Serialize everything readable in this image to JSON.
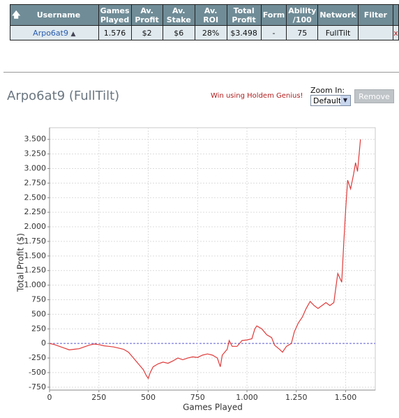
{
  "table": {
    "headers": [
      "Username",
      "Games Played",
      "Av. Profit",
      "Av. Stake",
      "Av. ROI",
      "Total Profit",
      "Form",
      "Ability /100",
      "Network",
      "Filter"
    ],
    "rows": [
      [
        "Arpo6at9",
        "1.576",
        "$2",
        "$6",
        "28%",
        "$3.498",
        "-",
        "75",
        "FullTilt"
      ]
    ],
    "delete": "x"
  },
  "profile": {
    "heading": "Arpo6at9 (FullTilt)",
    "promo": "Win using Holdem Genius!",
    "zoom_label": "Zoom In:",
    "zoom_option": "Default",
    "remove_button": "Remove"
  },
  "chart_data": {
    "type": "line",
    "x_label": "Games Played",
    "y_label": "Total Profit ($)",
    "x": [
      0,
      25,
      50,
      75,
      100,
      125,
      150,
      175,
      200,
      225,
      250,
      275,
      300,
      325,
      350,
      375,
      400,
      425,
      450,
      475,
      490,
      500,
      510,
      525,
      550,
      575,
      600,
      625,
      650,
      675,
      700,
      725,
      750,
      775,
      800,
      825,
      850,
      865,
      875,
      900,
      910,
      925,
      950,
      975,
      1000,
      1025,
      1040,
      1050,
      1075,
      1100,
      1125,
      1140,
      1165,
      1180,
      1200,
      1225,
      1240,
      1260,
      1280,
      1300,
      1320,
      1340,
      1360,
      1380,
      1400,
      1420,
      1440,
      1460,
      1480,
      1490,
      1500,
      1510,
      1525,
      1540,
      1550,
      1560,
      1575
    ],
    "series": [
      {
        "name": "Total Profit",
        "color": "#e03a3a",
        "values": [
          0,
          -20,
          -50,
          -80,
          -110,
          -100,
          -90,
          -60,
          -30,
          -10,
          -20,
          -40,
          -50,
          -60,
          -80,
          -100,
          -150,
          -250,
          -350,
          -450,
          -550,
          -600,
          -500,
          -400,
          -350,
          -320,
          -340,
          -300,
          -250,
          -280,
          -250,
          -230,
          -240,
          -200,
          -180,
          -200,
          -250,
          -400,
          -200,
          -100,
          50,
          -50,
          -50,
          50,
          60,
          80,
          250,
          300,
          250,
          150,
          100,
          -30,
          -100,
          -150,
          -50,
          0,
          200,
          350,
          450,
          600,
          720,
          650,
          600,
          650,
          700,
          650,
          700,
          1200,
          1050,
          1700,
          2300,
          2800,
          2650,
          2900,
          3100,
          2950,
          3500
        ]
      }
    ],
    "xlim": [
      0,
      1650
    ],
    "xticks": [
      0,
      250,
      500,
      750,
      {
        "value": 1000,
        "label": "1.000"
      },
      {
        "value": 1250,
        "label": "1.250"
      },
      {
        "value": 1500,
        "label": "1.500"
      }
    ],
    "ylim": [
      -800,
      3700
    ],
    "yticks": [
      -750,
      -500,
      -250,
      0,
      250,
      500,
      750,
      {
        "value": 1000,
        "label": "1.000"
      },
      {
        "value": 1250,
        "label": "1.250"
      },
      {
        "value": 1500,
        "label": "1.500"
      },
      {
        "value": 1750,
        "label": "1.750"
      },
      {
        "value": 2000,
        "label": "2.000"
      },
      {
        "value": 2250,
        "label": "2.250"
      },
      {
        "value": 2500,
        "label": "2.500"
      },
      {
        "value": 2750,
        "label": "2.750"
      },
      {
        "value": 3000,
        "label": "3.000"
      },
      {
        "value": 3250,
        "label": "3.250"
      },
      {
        "value": 3500,
        "label": "3.500"
      }
    ],
    "grid": true,
    "zero_line_color": "#5a5ad0"
  }
}
